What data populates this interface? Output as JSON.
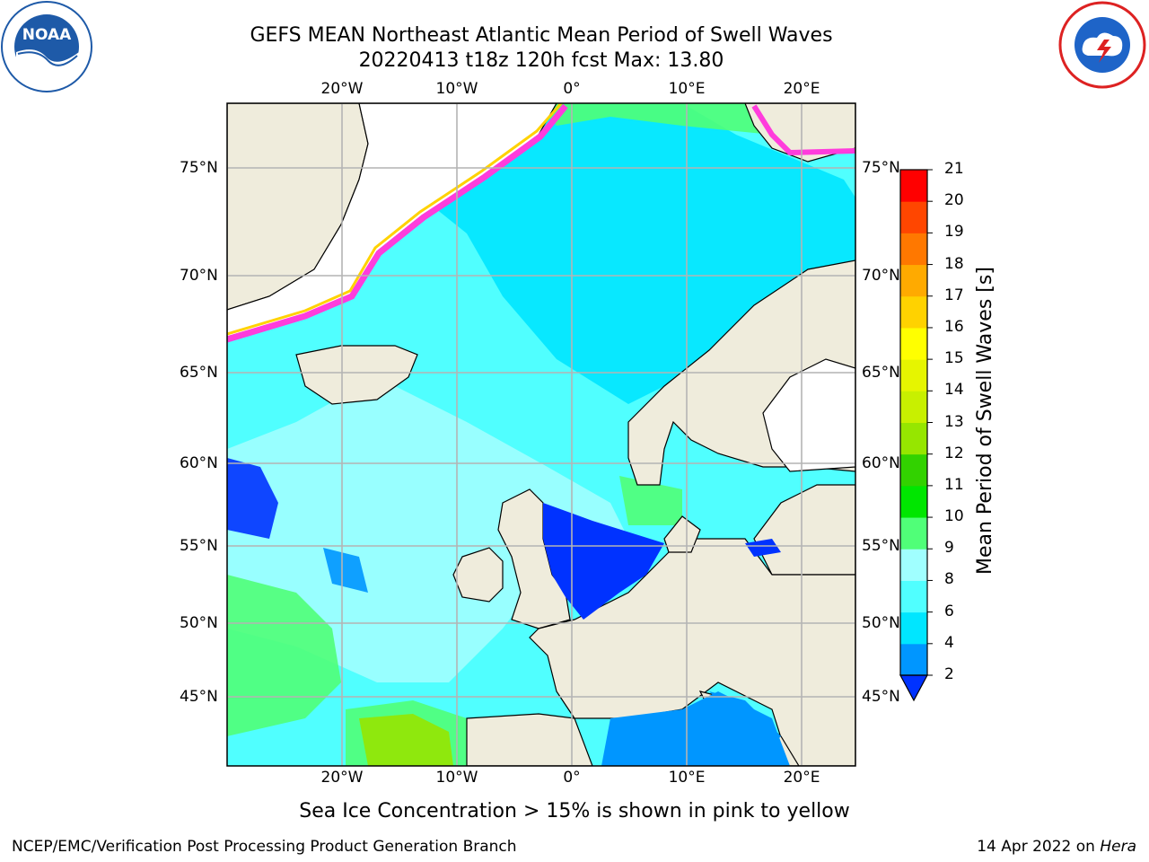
{
  "title": {
    "line1": "GEFS MEAN Northeast Atlantic Mean Period of Swell Waves",
    "line2": "20220413 t18z 120h fcst   Max: 13.80"
  },
  "map": {
    "lon_labels": [
      "20°W",
      "10°W",
      "0°",
      "10°E",
      "20°E"
    ],
    "lat_labels": [
      "75°N",
      "70°N",
      "65°N",
      "60°N",
      "55°N",
      "50°N",
      "45°N"
    ],
    "colors": {
      "land": "#efecdc",
      "ice_white": "#ffffff",
      "grid": "#b4b4b4",
      "coast": "#000000"
    }
  },
  "colorbar": {
    "label": "Mean Period of Swell Waves [s]",
    "ticks": [
      "2",
      "4",
      "6",
      "8",
      "9",
      "10",
      "11",
      "12",
      "13",
      "14",
      "15",
      "16",
      "17",
      "18",
      "19",
      "20",
      "21"
    ],
    "colors": [
      "#0032ff",
      "#0096ff",
      "#00e6ff",
      "#50ffff",
      "#a0ffff",
      "#50ff78",
      "#00e600",
      "#32d200",
      "#96e600",
      "#c8f000",
      "#e6f500",
      "#ffff00",
      "#ffd200",
      "#ffaa00",
      "#ff7800",
      "#ff4600",
      "#ff0000"
    ]
  },
  "logos": {
    "noaa_text": "NOAA",
    "noaa_ring": "NATIONAL OCEANIC AND ATMOSPHERIC ADMINISTRATION · U.S. DEPARTMENT OF COMMERCE",
    "nws_ring": "NATIONAL WEATHER SERVICE"
  },
  "note": "Sea Ice Concentration > 15% is shown in pink to yellow",
  "footer": {
    "left": "NCEP/EMC/Verification Post Processing Product Generation Branch",
    "right_prefix": "14 Apr 2022 on ",
    "right_host": "Hera"
  }
}
